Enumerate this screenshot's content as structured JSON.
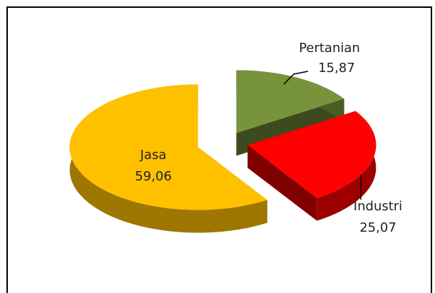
{
  "chart_data": {
    "type": "pie",
    "categories": [
      "Pertanian",
      "Industri",
      "Jasa"
    ],
    "values": [
      15.87,
      25.07,
      59.06
    ],
    "value_labels": [
      "15,87",
      "25,07",
      "59,06"
    ],
    "colors": [
      "#77933c",
      "#ff0000",
      "#ffc000"
    ]
  }
}
